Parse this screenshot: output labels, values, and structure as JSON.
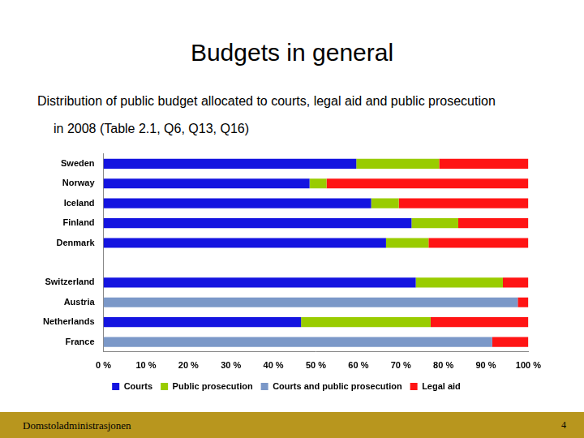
{
  "chart_data": {
    "type": "bar",
    "orientation": "horizontal",
    "stacked": true,
    "title": "Budgets in general",
    "subtitle": [
      "Distribution of public budget allocated to courts, legal aid and public prosecution",
      "in 2008 (Table 2.1, Q6, Q13, Q16)"
    ],
    "categories": [
      "Sweden",
      "Norway",
      "Iceland",
      "Finland",
      "Denmark",
      null,
      "Switzerland",
      "Austria",
      "Netherlands",
      "France"
    ],
    "series": [
      {
        "name": "Courts",
        "color": "#1414e0",
        "values": [
          59.5,
          48.5,
          63,
          72.5,
          66.5,
          null,
          73.5,
          null,
          46.5,
          null
        ]
      },
      {
        "name": "Public prosecution",
        "color": "#99cc00",
        "values": [
          19.5,
          4,
          6.5,
          11,
          10,
          null,
          20.5,
          null,
          30.5,
          null
        ]
      },
      {
        "name": "Courts and public prosecution",
        "color": "#7b98c8",
        "values": [
          null,
          null,
          null,
          null,
          null,
          null,
          null,
          97.5,
          null,
          91.5
        ]
      },
      {
        "name": "Legal aid",
        "color": "#ff1414",
        "values": [
          21,
          47.5,
          30.5,
          16.5,
          23.5,
          null,
          6,
          2.5,
          23,
          8.5
        ]
      }
    ],
    "xlim": [
      0,
      100
    ],
    "xticks": [
      {
        "value": 0,
        "label": "0 %"
      },
      {
        "value": 10,
        "label": "10 %"
      },
      {
        "value": 20,
        "label": "20 %"
      },
      {
        "value": 30,
        "label": "30 %"
      },
      {
        "value": 40,
        "label": "40 %"
      },
      {
        "value": 50,
        "label": "50 %"
      },
      {
        "value": 60,
        "label": "60 %"
      },
      {
        "value": 70,
        "label": "70 %"
      },
      {
        "value": 80,
        "label": "80 %"
      },
      {
        "value": 90,
        "label": "90 %"
      },
      {
        "value": 100,
        "label": "100 %"
      }
    ],
    "grid": false,
    "legend": "bottom",
    "footer": {
      "text": "Domstoladministrasjonen",
      "page": 4
    }
  }
}
